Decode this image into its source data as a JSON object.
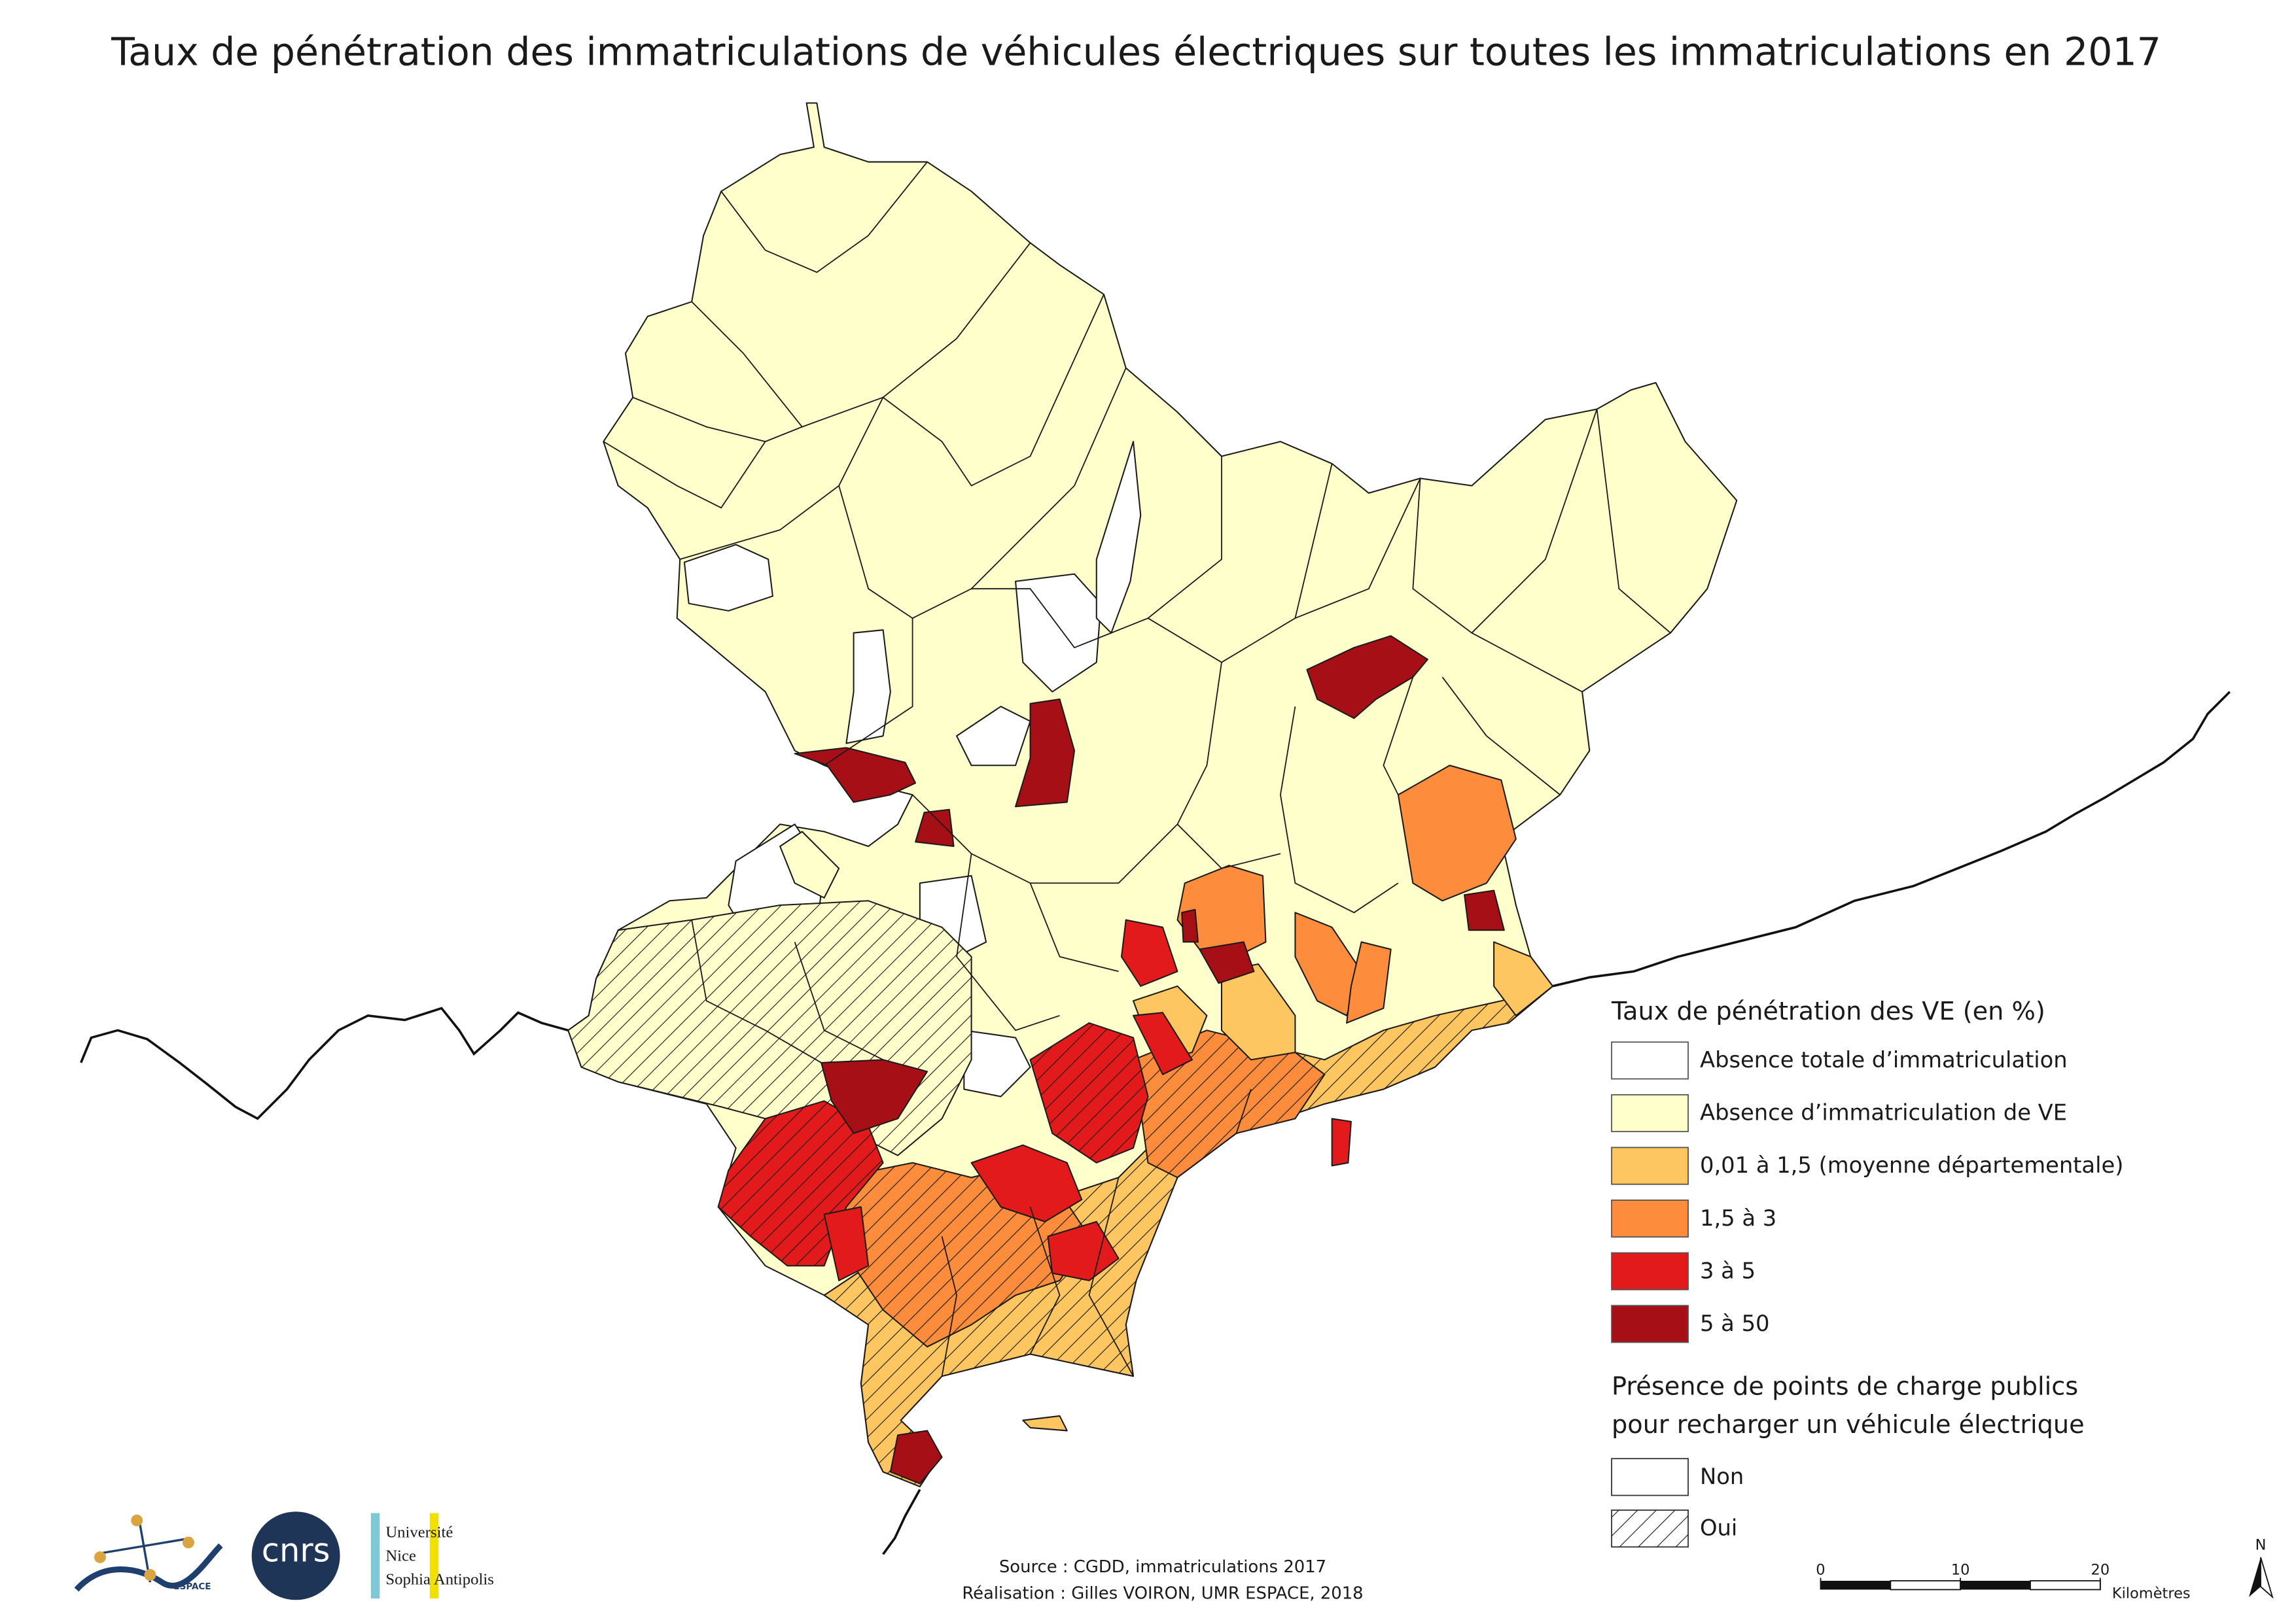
{
  "title": "Taux de pénétration des immatriculations de véhicules électriques sur toutes les immatriculations en 2017",
  "legend": {
    "title": "Taux de pénétration des VE (en %)",
    "classes": [
      {
        "label": "Absence totale d’immatriculation",
        "color": "#ffffff"
      },
      {
        "label": "Absence d’immatriculation de VE",
        "color": "#ffffcc"
      },
      {
        "label": "0,01 à 1,5 (moyenne départementale)",
        "color": "#fec661"
      },
      {
        "label": "1,5 à 3",
        "color": "#fd8d3c"
      },
      {
        "label": "3 à 5",
        "color": "#e31a1c"
      },
      {
        "label": "5 à 50",
        "color": "#a50f15"
      }
    ]
  },
  "legend2": {
    "title": [
      "Présence de points de charge publics",
      "pour recharger un véhicule électrique"
    ],
    "items": [
      {
        "label": "Non",
        "hatch": false
      },
      {
        "label": "Oui",
        "hatch": true
      }
    ]
  },
  "source": [
    "Source : CGDD, immatriculations 2017",
    "Réalisation : Gilles VOIRON, UMR ESPACE, 2018"
  ],
  "scale_bar": {
    "ticks": [
      0,
      10,
      20
    ],
    "unit": "Kilomètres"
  },
  "north": "N",
  "logos": {
    "espace": "ESPACE",
    "cnrs": "cnrs",
    "university": [
      "Université",
      "Nice",
      "Sophia Antipolis"
    ]
  }
}
